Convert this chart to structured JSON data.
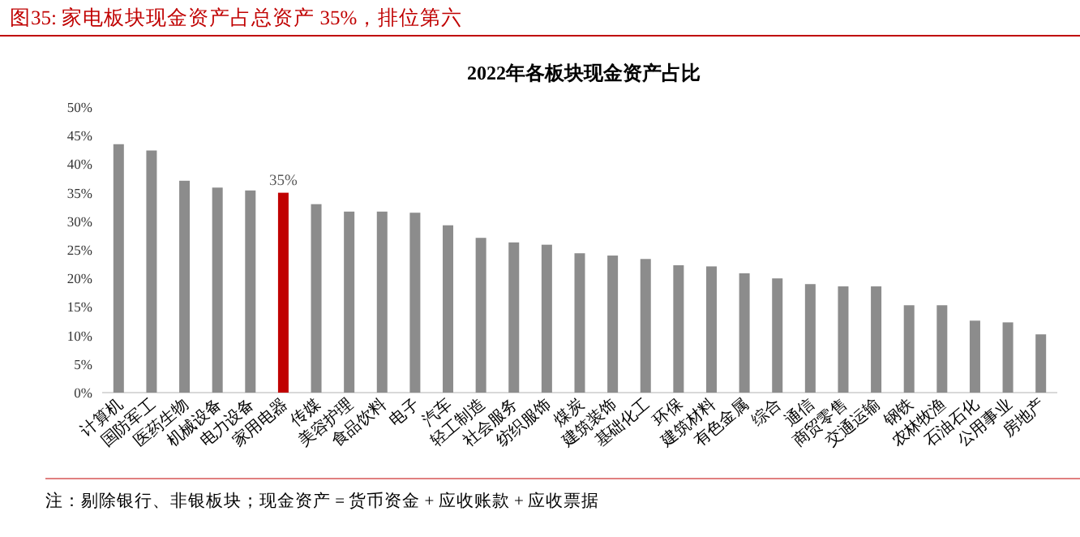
{
  "chart_data": {
    "type": "bar",
    "title": "图35:   家电板块现金资产占总资产 35%，排位第六",
    "subtitle": "2022年各板块现金资产占比",
    "categories": [
      "计算机",
      "国防军工",
      "医药生物",
      "机械设备",
      "电力设备",
      "家用电器",
      "传媒",
      "美容护理",
      "食品饮料",
      "电子",
      "汽车",
      "轻工制造",
      "社会服务",
      "纺织服饰",
      "煤炭",
      "建筑装饰",
      "基础化工",
      "环保",
      "建筑材料",
      "有色金属",
      "综合",
      "通信",
      "商贸零售",
      "交通运输",
      "钢铁",
      "农林牧渔",
      "石油石化",
      "公用事业",
      "房地产"
    ],
    "values": [
      43.5,
      42.4,
      37.1,
      35.9,
      35.4,
      35,
      33.0,
      31.7,
      31.7,
      31.5,
      29.3,
      27.1,
      26.3,
      25.9,
      24.4,
      24.0,
      23.4,
      22.3,
      22.1,
      20.9,
      20.0,
      19.0,
      18.6,
      18.6,
      15.3,
      15.3,
      12.6,
      12.3,
      10.2
    ],
    "colors": [
      "#8c8c8c",
      "#8c8c8c",
      "#8c8c8c",
      "#8c8c8c",
      "#8c8c8c",
      "#c00000",
      "#8c8c8c",
      "#8c8c8c",
      "#8c8c8c",
      "#8c8c8c",
      "#8c8c8c",
      "#8c8c8c",
      "#8c8c8c",
      "#8c8c8c",
      "#8c8c8c",
      "#8c8c8c",
      "#8c8c8c",
      "#8c8c8c",
      "#8c8c8c",
      "#8c8c8c",
      "#8c8c8c",
      "#8c8c8c",
      "#8c8c8c",
      "#8c8c8c",
      "#8c8c8c",
      "#8c8c8c",
      "#8c8c8c",
      "#8c8c8c",
      "#8c8c8c"
    ],
    "value_labels": [
      null,
      null,
      null,
      null,
      null,
      "35%",
      null,
      null,
      null,
      null,
      null,
      null,
      null,
      null,
      null,
      null,
      null,
      null,
      null,
      null,
      null,
      null,
      null,
      null,
      null,
      null,
      null,
      null,
      null
    ],
    "ylim": [
      0,
      50
    ],
    "yticks": [
      {
        "value": 0,
        "label": "0%"
      },
      {
        "value": 5,
        "label": "5%"
      },
      {
        "value": 10,
        "label": "10%"
      },
      {
        "value": 15,
        "label": "15%"
      },
      {
        "value": 20,
        "label": "20%"
      },
      {
        "value": 25,
        "label": "25%"
      },
      {
        "value": 30,
        "label": "30%"
      },
      {
        "value": 35,
        "label": "35%"
      },
      {
        "value": 40,
        "label": "40%"
      },
      {
        "value": 45,
        "label": "45%"
      },
      {
        "value": 50,
        "label": "50%"
      }
    ],
    "annotations": [
      "注：剔除银行、非银板块；现金资产 = 货币资金 + 应收账款 + 应收票据"
    ]
  }
}
